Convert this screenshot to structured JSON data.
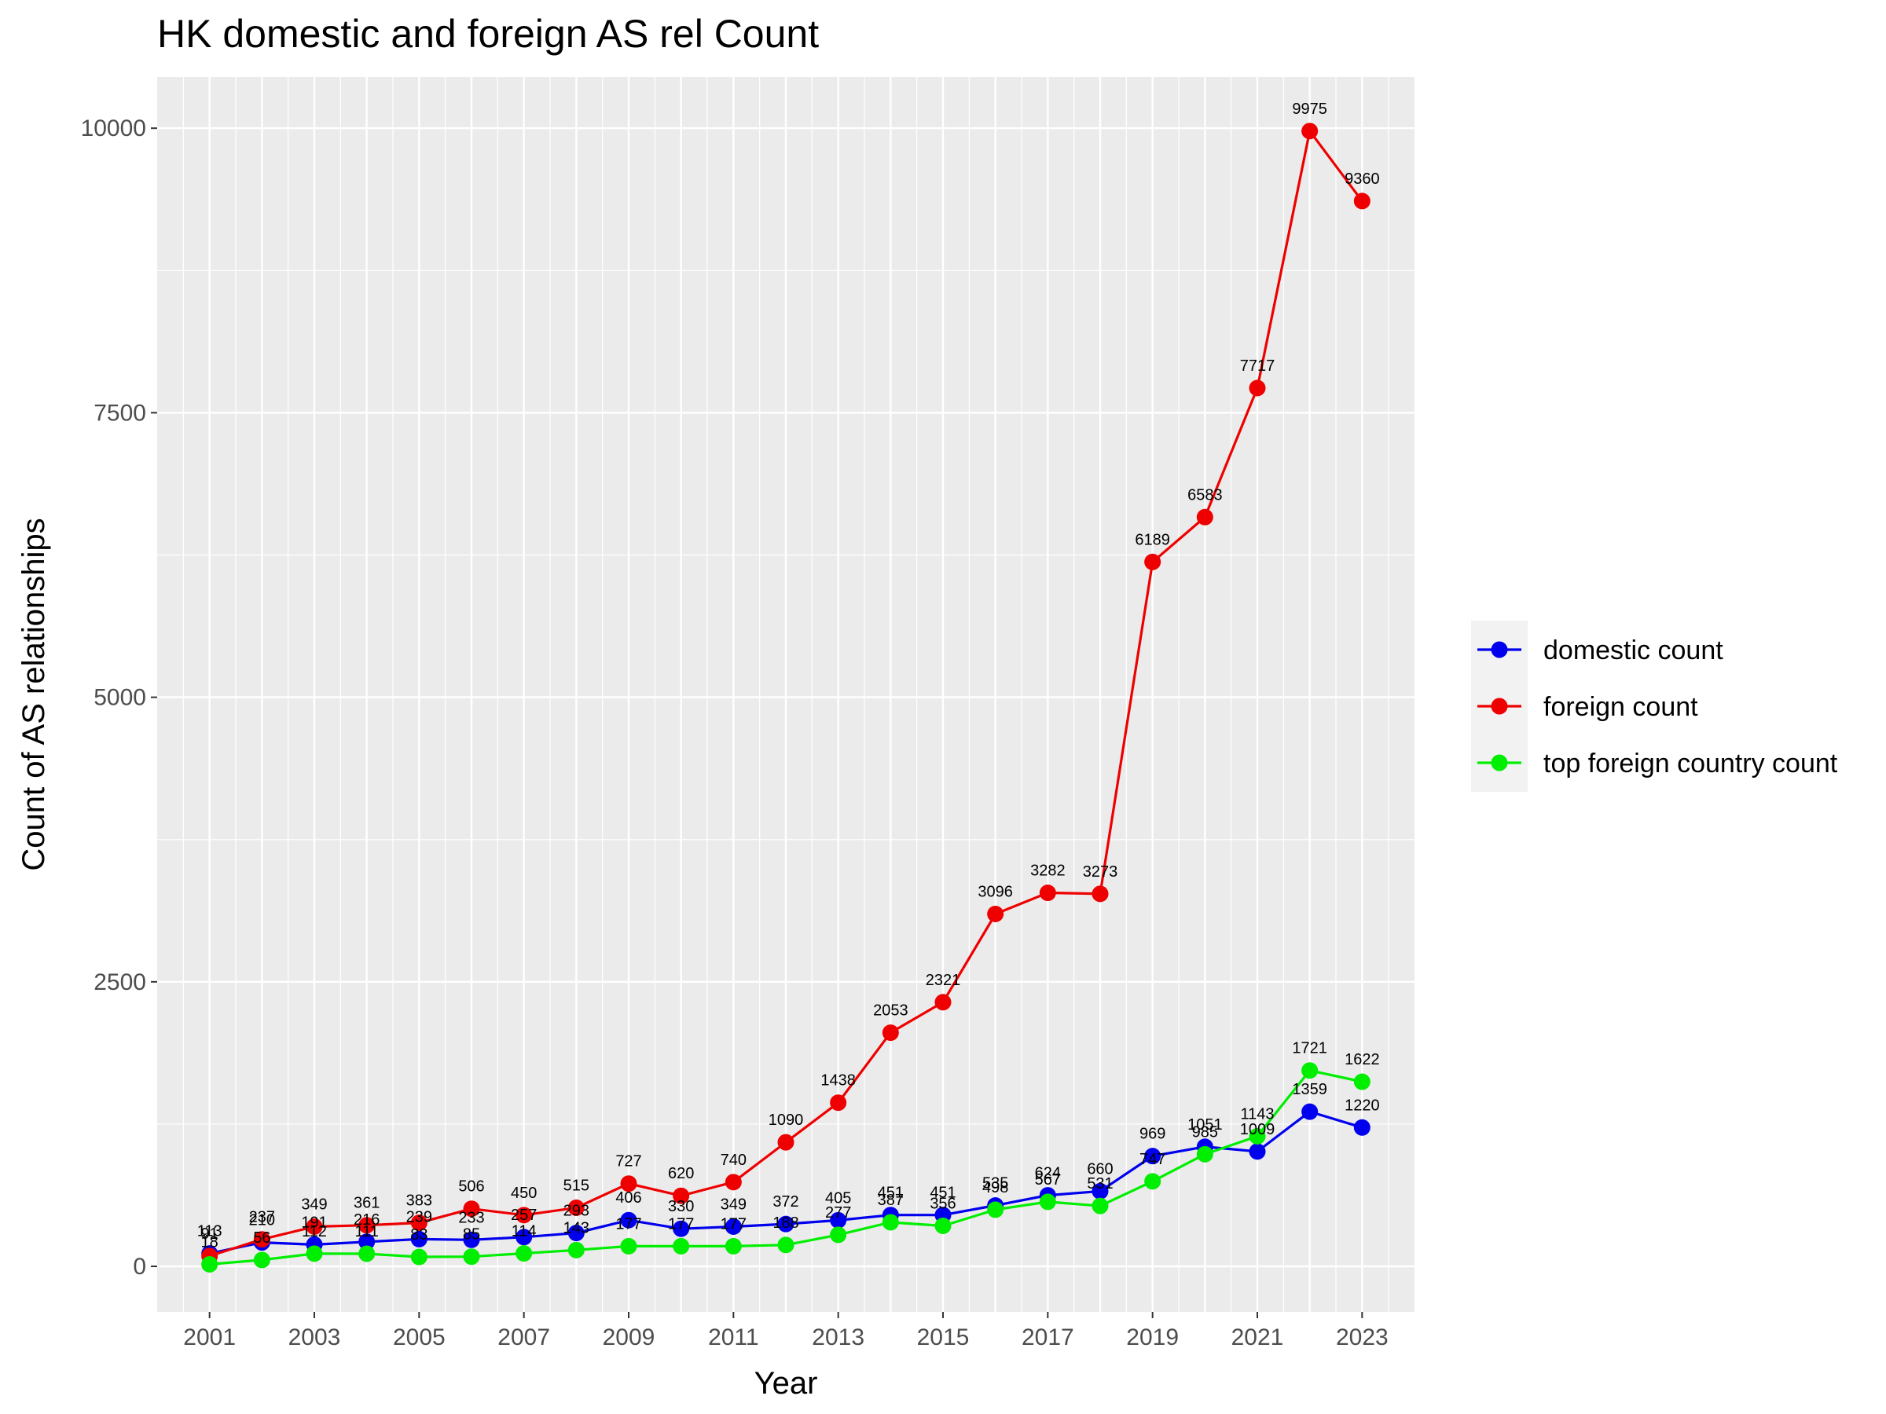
{
  "chart_data": {
    "type": "line",
    "title": "HK domestic and foreign AS rel Count",
    "xlabel": "Year",
    "ylabel": "Count of AS relationships",
    "x": [
      2001,
      2002,
      2003,
      2004,
      2005,
      2006,
      2007,
      2008,
      2009,
      2010,
      2011,
      2012,
      2013,
      2014,
      2015,
      2016,
      2017,
      2018,
      2019,
      2020,
      2021,
      2022,
      2023
    ],
    "x_ticks": [
      "2001",
      "2003",
      "2005",
      "2007",
      "2009",
      "2011",
      "2013",
      "2015",
      "2017",
      "2019",
      "2021",
      "2023"
    ],
    "y_ticks": [
      "0",
      "2500",
      "5000",
      "7500",
      "10000"
    ],
    "xlim": [
      2000,
      2024
    ],
    "ylim": [
      -400,
      10450
    ],
    "grid": true,
    "legend_position": "right",
    "series": [
      {
        "name": "domestic count",
        "color": "#0000ee",
        "values": [
          113,
          210,
          191,
          216,
          239,
          233,
          257,
          293,
          406,
          330,
          349,
          372,
          405,
          451,
          451,
          535,
          624,
          660,
          969,
          1051,
          1009,
          1359,
          1220
        ]
      },
      {
        "name": "foreign count",
        "color": "#ee0000",
        "values": [
          91,
          237,
          349,
          361,
          383,
          506,
          450,
          515,
          727,
          620,
          740,
          1090,
          1438,
          2053,
          2321,
          3096,
          3282,
          3273,
          6189,
          6583,
          7717,
          9975,
          9360
        ]
      },
      {
        "name": "top foreign country count",
        "color": "#00ee00",
        "values": [
          18,
          56,
          112,
          111,
          83,
          85,
          114,
          143,
          177,
          177,
          177,
          188,
          277,
          387,
          356,
          498,
          567,
          531,
          747,
          985,
          1143,
          1721,
          1622
        ]
      }
    ]
  }
}
